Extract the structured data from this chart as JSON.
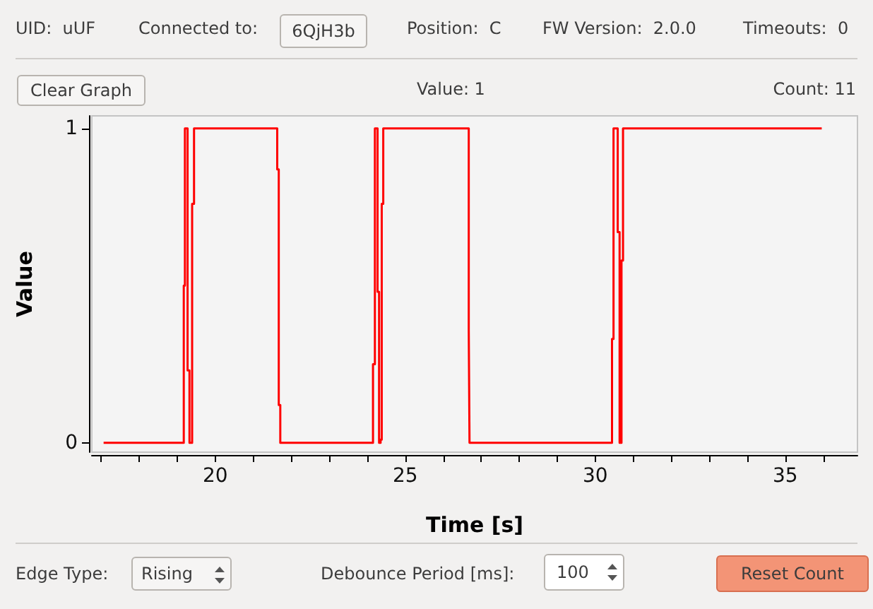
{
  "chart_data": {
    "type": "line",
    "xlabel": "Time [s]",
    "ylabel": "Value",
    "series": [
      {
        "color": "#ff0000",
        "x": [
          17.06,
          19.17,
          19.17,
          19.2,
          19.2,
          19.27,
          19.27,
          19.32,
          19.32,
          19.39,
          19.39,
          19.44,
          19.44,
          19.48,
          19.48,
          21.63,
          21.63,
          21.67,
          21.67,
          21.71,
          21.71,
          24.15,
          24.15,
          24.2,
          24.2,
          24.27,
          24.27,
          24.31,
          24.31,
          24.35,
          24.35,
          24.38,
          24.38,
          24.42,
          24.42,
          26.67,
          26.67,
          26.69,
          26.69,
          30.44,
          30.44,
          30.48,
          30.48,
          30.59,
          30.59,
          30.64,
          30.64,
          30.69,
          30.69,
          30.73,
          30.73,
          35.96
        ],
        "values": [
          0,
          0,
          0.5,
          0.5,
          1,
          1,
          0.23,
          0.23,
          0,
          0,
          0.76,
          0.76,
          1,
          1,
          1,
          1,
          0.87,
          0.87,
          0.12,
          0.12,
          0,
          0,
          0.25,
          0.25,
          1,
          1,
          0.48,
          0.48,
          0,
          0,
          0.01,
          0.01,
          0.76,
          0.76,
          1,
          1,
          0.36,
          0.36,
          0,
          0,
          0.33,
          0.33,
          1,
          1,
          0.67,
          0.67,
          0,
          0,
          0.58,
          0.58,
          1,
          1
        ]
      }
    ],
    "xlim": [
      16.75,
      36.9
    ],
    "xticks": [
      {
        "value": 17,
        "label": null
      },
      {
        "value": 18,
        "label": null
      },
      {
        "value": 19,
        "label": null
      },
      20,
      {
        "value": 21,
        "label": null
      },
      {
        "value": 22,
        "label": null
      },
      {
        "value": 23,
        "label": null
      },
      {
        "value": 24,
        "label": null
      },
      25,
      {
        "value": 26,
        "label": null
      },
      {
        "value": 27,
        "label": null
      },
      {
        "value": 28,
        "label": null
      },
      {
        "value": 29,
        "label": null
      },
      30,
      {
        "value": 31,
        "label": null
      },
      {
        "value": 32,
        "label": null
      },
      {
        "value": 33,
        "label": null
      },
      {
        "value": 34,
        "label": null
      },
      35,
      {
        "value": 36,
        "label": null
      }
    ],
    "ylim": [
      -0.03,
      1.04
    ],
    "yticks": [
      0,
      1
    ],
    "grid": false,
    "marker": "none",
    "line_style": "solid",
    "annotations": [
      "UID:  uUF",
      "Connected to:",
      "6QjH3b",
      "Position:  C",
      "FW Version:  2.0.0",
      "Timeouts:  0",
      "Clear Graph",
      "Value: 1",
      "Count: 11",
      "Edge Type:",
      "Rising",
      "Debounce Period [ms]:",
      "100",
      "Reset Count"
    ]
  }
}
